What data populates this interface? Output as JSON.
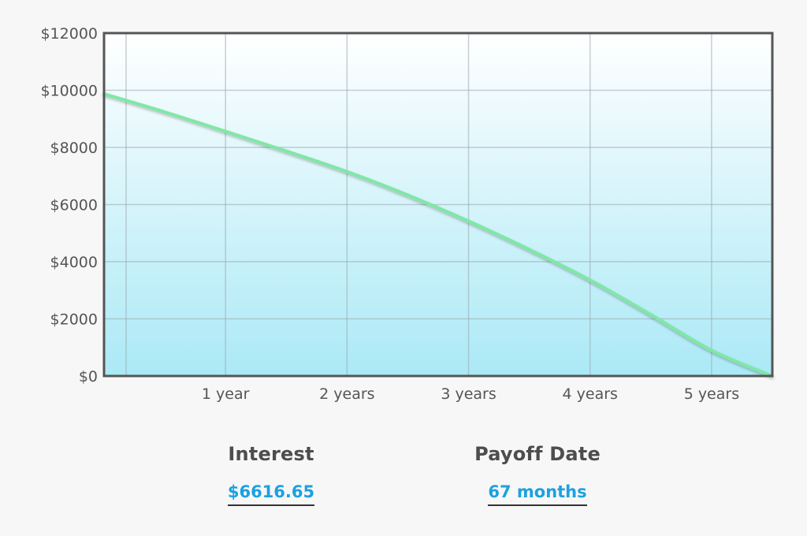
{
  "chart_data": {
    "type": "area",
    "y_tick_labels": [
      "$0",
      "$2000",
      "$4000",
      "$6000",
      "$8000",
      "$10000",
      "$12000"
    ],
    "y_ticks": [
      0,
      2000,
      4000,
      6000,
      8000,
      10000,
      12000
    ],
    "x_tick_labels": [
      "1 year",
      "2 years",
      "3 years",
      "4 years",
      "5 years"
    ],
    "x_ticks": [
      12,
      24,
      36,
      48,
      60
    ],
    "xlim": [
      0,
      66
    ],
    "ylim": [
      0,
      12000
    ],
    "grid": true,
    "x_unit": "months",
    "series": [
      {
        "x": [
          0,
          6,
          12,
          18,
          24,
          30,
          36,
          42,
          48,
          54,
          60,
          66
        ],
        "values": [
          9870,
          9240,
          8560,
          7870,
          7150,
          6330,
          5420,
          4430,
          3360,
          2150,
          900,
          0
        ],
        "color": "#7ee8a4"
      }
    ],
    "fill_gradient": [
      "#ffffff",
      "#abe9f6"
    ],
    "line_color": "#7ee8a4"
  },
  "stats": {
    "interest_label": "Interest",
    "interest_value": "$6616.65",
    "payoff_label": "Payoff Date",
    "payoff_value": "67 months"
  }
}
